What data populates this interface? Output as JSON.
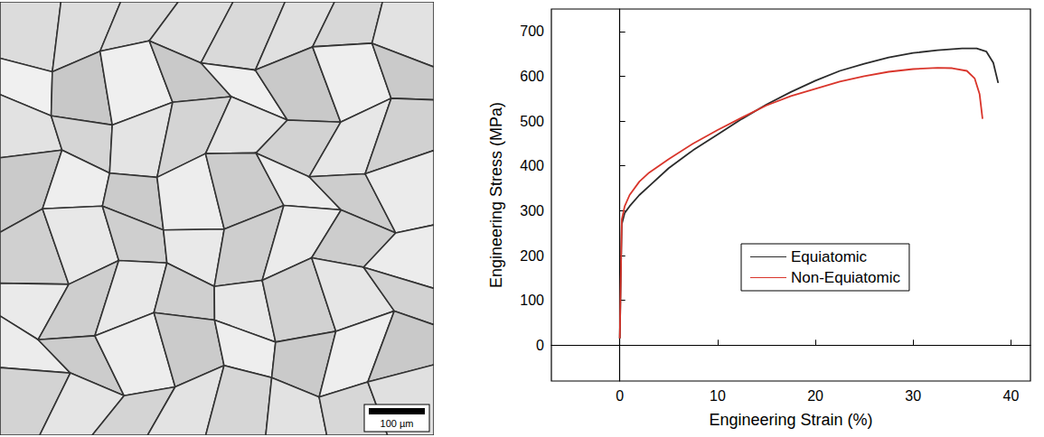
{
  "micrograph": {
    "scale_bar": "100 µm"
  },
  "chart_data": {
    "type": "line",
    "xlabel": "Engineering Strain (%)",
    "ylabel": "Engineering Stress (MPa)",
    "xlim": [
      -7,
      42
    ],
    "xticks": [
      0,
      10,
      20,
      30,
      40
    ],
    "ylim": [
      -80,
      750
    ],
    "yticks": [
      0,
      100,
      200,
      300,
      400,
      500,
      600,
      700
    ],
    "grid": false,
    "legend": "center",
    "series": [
      {
        "name": "Equiatomic",
        "color": "#2b2b2b",
        "x": [
          0,
          0.1,
          0.2,
          0.5,
          1,
          2,
          3,
          5,
          7.5,
          10,
          12.5,
          15,
          17.5,
          20,
          22.5,
          25,
          27.5,
          30,
          32.5,
          35,
          36.5,
          37.5,
          38.2,
          38.7
        ],
        "values": [
          15,
          150,
          270,
          295,
          310,
          335,
          355,
          395,
          435,
          470,
          505,
          537,
          565,
          590,
          612,
          628,
          642,
          652,
          658,
          662,
          662,
          655,
          630,
          585
        ]
      },
      {
        "name": "Non-Equiatomic",
        "color": "#d9352b",
        "x": [
          0,
          0.1,
          0.2,
          0.5,
          1,
          2,
          3,
          5,
          7.5,
          10,
          12.5,
          15,
          17.5,
          20,
          22.5,
          25,
          27.5,
          30,
          32.5,
          34,
          35.5,
          36.3,
          36.8,
          37.1
        ],
        "values": [
          15,
          150,
          280,
          310,
          335,
          365,
          385,
          415,
          450,
          480,
          508,
          535,
          556,
          572,
          588,
          600,
          610,
          616,
          619,
          618,
          612,
          595,
          560,
          505
        ]
      }
    ]
  }
}
